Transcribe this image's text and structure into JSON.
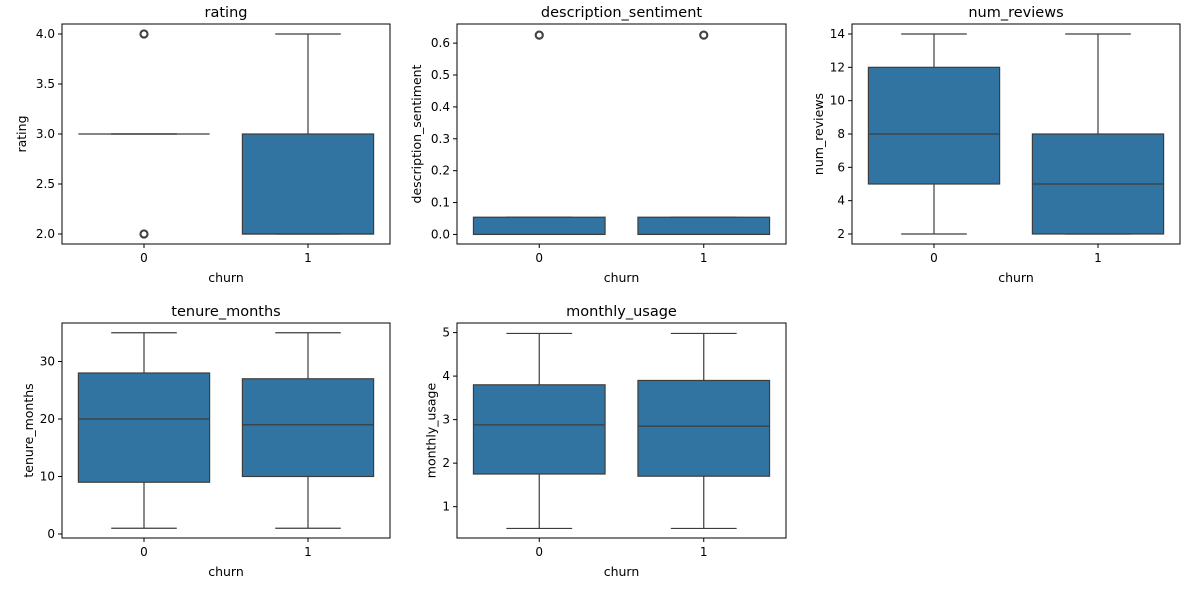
{
  "chart_data": [
    {
      "type": "box",
      "title": "rating",
      "xlabel": "churn",
      "ylabel": "rating",
      "categories": [
        "0",
        "1"
      ],
      "ylim": [
        1.9,
        4.1
      ],
      "yticks": [
        2.0,
        2.5,
        3.0,
        3.5,
        4.0
      ],
      "ytick_labels": [
        "2.0",
        "2.5",
        "3.0",
        "3.5",
        "4.0"
      ],
      "boxes": [
        {
          "category": "0",
          "whisker_low": 3.0,
          "q1": 3.0,
          "median": 3.0,
          "q3": 3.0,
          "whisker_high": 3.0,
          "outliers": [
            2.0,
            4.0
          ]
        },
        {
          "category": "1",
          "whisker_low": 2.0,
          "q1": 2.0,
          "median": 2.0,
          "q3": 3.0,
          "whisker_high": 4.0,
          "outliers": []
        }
      ]
    },
    {
      "type": "box",
      "title": "description_sentiment",
      "xlabel": "churn",
      "ylabel": "description_sentiment",
      "categories": [
        "0",
        "1"
      ],
      "ylim": [
        -0.03,
        0.66
      ],
      "yticks": [
        0.0,
        0.1,
        0.2,
        0.3,
        0.4,
        0.5,
        0.6
      ],
      "ytick_labels": [
        "0.0",
        "0.1",
        "0.2",
        "0.3",
        "0.4",
        "0.5",
        "0.6"
      ],
      "boxes": [
        {
          "category": "0",
          "whisker_low": 0.0,
          "q1": 0.0,
          "median": 0.0,
          "q3": 0.054,
          "whisker_high": 0.054,
          "outliers": [
            0.625
          ]
        },
        {
          "category": "1",
          "whisker_low": 0.0,
          "q1": 0.0,
          "median": 0.0,
          "q3": 0.054,
          "whisker_high": 0.054,
          "outliers": [
            0.625
          ]
        }
      ]
    },
    {
      "type": "box",
      "title": "num_reviews",
      "xlabel": "churn",
      "ylabel": "num_reviews",
      "categories": [
        "0",
        "1"
      ],
      "ylim": [
        1.4,
        14.6
      ],
      "yticks": [
        2,
        4,
        6,
        8,
        10,
        12,
        14
      ],
      "ytick_labels": [
        "2",
        "4",
        "6",
        "8",
        "10",
        "12",
        "14"
      ],
      "boxes": [
        {
          "category": "0",
          "whisker_low": 2,
          "q1": 5,
          "median": 8,
          "q3": 12,
          "whisker_high": 14,
          "outliers": []
        },
        {
          "category": "1",
          "whisker_low": 2,
          "q1": 2,
          "median": 5,
          "q3": 8,
          "whisker_high": 14,
          "outliers": []
        }
      ]
    },
    {
      "type": "box",
      "title": "tenure_months",
      "xlabel": "churn",
      "ylabel": "tenure_months",
      "categories": [
        "0",
        "1"
      ],
      "ylim": [
        -0.7,
        36.7
      ],
      "yticks": [
        0,
        10,
        20,
        30
      ],
      "ytick_labels": [
        "0",
        "10",
        "20",
        "30"
      ],
      "boxes": [
        {
          "category": "0",
          "whisker_low": 1,
          "q1": 9,
          "median": 20,
          "q3": 28,
          "whisker_high": 35,
          "outliers": []
        },
        {
          "category": "1",
          "whisker_low": 1,
          "q1": 10,
          "median": 19,
          "q3": 27,
          "whisker_high": 35,
          "outliers": []
        }
      ]
    },
    {
      "type": "box",
      "title": "monthly_usage",
      "xlabel": "churn",
      "ylabel": "monthly_usage",
      "categories": [
        "0",
        "1"
      ],
      "ylim": [
        0.28,
        5.22
      ],
      "yticks": [
        1,
        2,
        3,
        4,
        5
      ],
      "ytick_labels": [
        "1",
        "2",
        "3",
        "4",
        "5"
      ],
      "boxes": [
        {
          "category": "0",
          "whisker_low": 0.5,
          "q1": 1.75,
          "median": 2.88,
          "q3": 3.8,
          "whisker_high": 4.98,
          "outliers": []
        },
        {
          "category": "1",
          "whisker_low": 0.5,
          "q1": 1.7,
          "median": 2.85,
          "q3": 3.9,
          "whisker_high": 4.98,
          "outliers": []
        }
      ]
    }
  ],
  "colors": {
    "box_fill": "#3274a1",
    "line": "#3d3d3d",
    "axis": "#000000",
    "background": "#ffffff"
  }
}
